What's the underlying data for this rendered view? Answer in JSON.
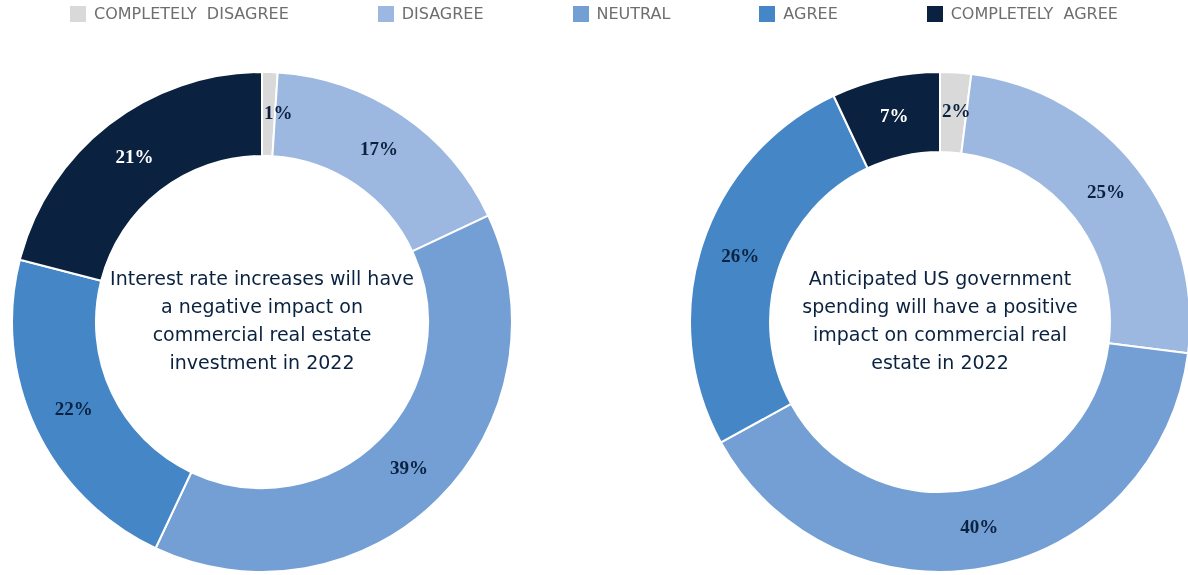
{
  "chart_data": [
    {
      "type": "donut",
      "title": "Interest rate increases will have a negative impact on commercial real estate investment in 2022",
      "categories": [
        "COMPLETELY  DISAGREE",
        "DISAGREE",
        "NEUTRAL",
        "AGREE",
        "COMPLETELY  AGREE"
      ],
      "values": [
        1,
        17,
        39,
        22,
        21
      ],
      "value_labels": [
        "1%",
        "17%",
        "39%",
        "22%",
        "21%"
      ],
      "colors": [
        "#d9d9d9",
        "#9db8e0",
        "#739fd4",
        "#4486c6",
        "#0a2240"
      ],
      "legend": "top"
    },
    {
      "type": "donut",
      "title": "Anticipated US government spending will have a positive impact on commercial real estate in 2022",
      "categories": [
        null,
        null,
        null,
        null,
        null
      ],
      "values": [
        2,
        25,
        40,
        26,
        7
      ],
      "value_labels": [
        "2%",
        "25%",
        "40%",
        "26%",
        "7%"
      ],
      "colors": [
        "#d9d9d9",
        "#9db8e0",
        "#739fd4",
        "#4486c6",
        "#0a2240"
      ]
    }
  ]
}
